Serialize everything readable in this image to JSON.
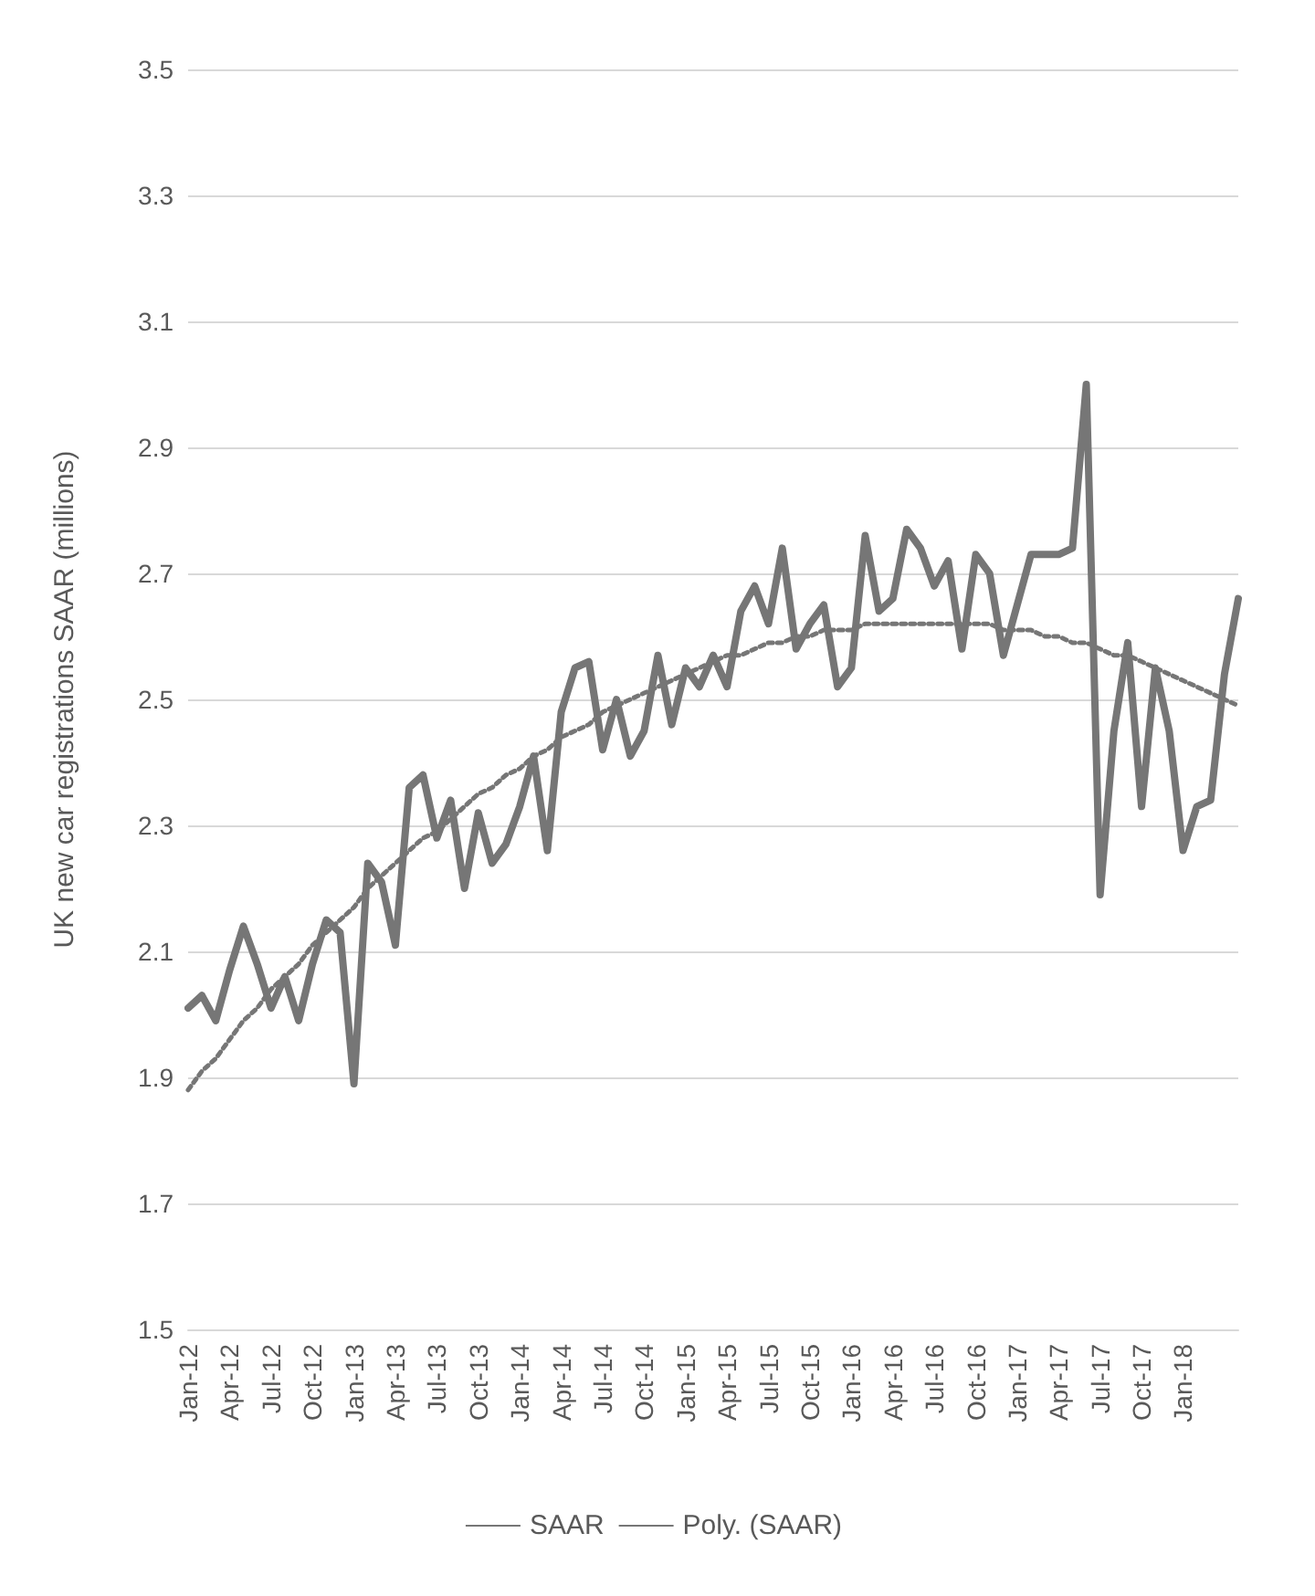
{
  "chart_data": {
    "type": "line",
    "ylabel": "UK new car registrations SAAR (millions)",
    "categories": [
      "Jan-12",
      null,
      null,
      "Apr-12",
      null,
      null,
      "Jul-12",
      null,
      null,
      "Oct-12",
      null,
      null,
      "Jan-13",
      null,
      null,
      "Apr-13",
      null,
      null,
      "Jul-13",
      null,
      null,
      "Oct-13",
      null,
      null,
      "Jan-14",
      null,
      null,
      "Apr-14",
      null,
      null,
      "Jul-14",
      null,
      null,
      "Oct-14",
      null,
      null,
      "Jan-15",
      null,
      null,
      "Apr-15",
      null,
      null,
      "Jul-15",
      null,
      null,
      "Oct-15",
      null,
      null,
      "Jan-16",
      null,
      null,
      "Apr-16",
      null,
      null,
      "Jul-16",
      null,
      null,
      "Oct-16",
      null,
      null,
      "Jan-17",
      null,
      null,
      "Apr-17",
      null,
      null,
      "Jul-17",
      null,
      null,
      "Oct-17",
      null,
      null,
      "Jan-18",
      null,
      null,
      null,
      null
    ],
    "series": [
      {
        "name": "SAAR",
        "color": "#767676",
        "line_style": "solid",
        "values": [
          2.01,
          2.03,
          1.99,
          2.07,
          2.14,
          2.08,
          2.01,
          2.06,
          1.99,
          2.08,
          2.15,
          2.13,
          1.89,
          2.24,
          2.21,
          2.11,
          2.36,
          2.38,
          2.28,
          2.34,
          2.2,
          2.32,
          2.24,
          2.27,
          2.33,
          2.41,
          2.26,
          2.48,
          2.55,
          2.56,
          2.42,
          2.5,
          2.41,
          2.45,
          2.57,
          2.46,
          2.55,
          2.52,
          2.57,
          2.52,
          2.64,
          2.68,
          2.62,
          2.74,
          2.58,
          2.62,
          2.65,
          2.52,
          2.55,
          2.76,
          2.64,
          2.66,
          2.77,
          2.74,
          2.68,
          2.72,
          2.58,
          2.73,
          2.7,
          2.57,
          2.65,
          2.73,
          2.73,
          2.73,
          2.74,
          3.0,
          2.19,
          2.45,
          2.59,
          2.33,
          2.55,
          2.45,
          2.26,
          2.33,
          2.34,
          2.54,
          2.66
        ]
      },
      {
        "name": "Poly. (SAAR)",
        "color": "#767676",
        "line_style": "dotted",
        "values": [
          1.88,
          1.91,
          1.93,
          1.96,
          1.99,
          2.01,
          2.04,
          2.06,
          2.08,
          2.11,
          2.13,
          2.15,
          2.17,
          2.2,
          2.22,
          2.24,
          2.26,
          2.28,
          2.29,
          2.31,
          2.33,
          2.35,
          2.36,
          2.38,
          2.39,
          2.41,
          2.42,
          2.44,
          2.45,
          2.46,
          2.48,
          2.49,
          2.5,
          2.51,
          2.52,
          2.53,
          2.54,
          2.55,
          2.56,
          2.57,
          2.57,
          2.58,
          2.59,
          2.59,
          2.6,
          2.6,
          2.61,
          2.61,
          2.61,
          2.62,
          2.62,
          2.62,
          2.62,
          2.62,
          2.62,
          2.62,
          2.62,
          2.62,
          2.62,
          2.61,
          2.61,
          2.61,
          2.6,
          2.6,
          2.59,
          2.59,
          2.58,
          2.57,
          2.57,
          2.56,
          2.55,
          2.54,
          2.53,
          2.52,
          2.51,
          2.5,
          2.49
        ]
      }
    ],
    "ylim": [
      1.5,
      3.5
    ],
    "yticks": [
      1.5,
      1.7,
      1.9,
      2.1,
      2.3,
      2.5,
      2.7,
      2.9,
      3.1,
      3.3,
      3.5
    ],
    "grid": "y",
    "legend": "bottom",
    "marker": "none"
  }
}
